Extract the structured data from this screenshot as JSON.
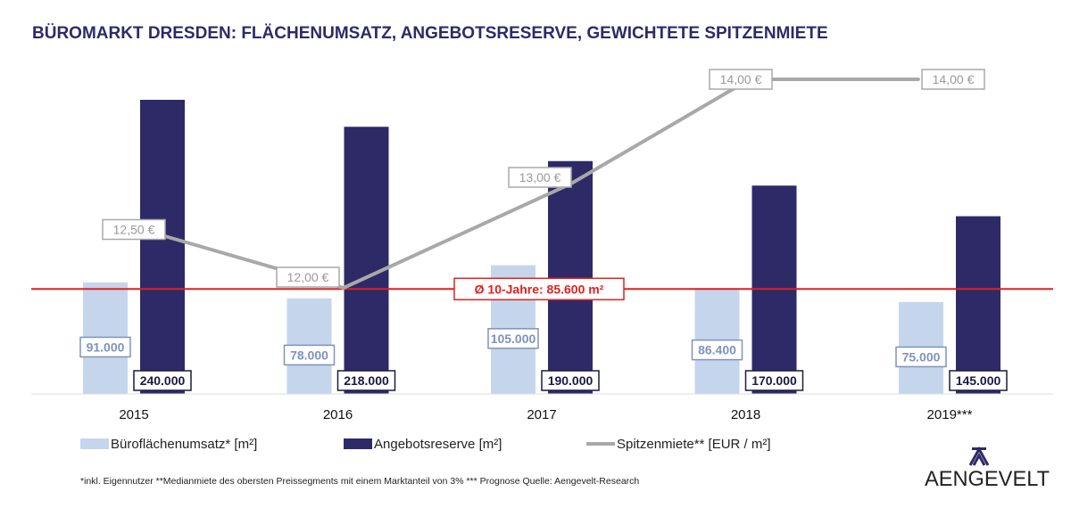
{
  "chart_data": {
    "type": "bar",
    "title": "BÜROMARKT DRESDEN: FLÄCHENUMSATZ, ANGEBOTSRESERVE, GEWICHTETE SPITZENMIETE",
    "categories": [
      "2015",
      "2016",
      "2017",
      "2018",
      "2019***"
    ],
    "series": [
      {
        "name": "Büroflächenumsatz* [m²]",
        "type": "bar",
        "color": "#c5d5ec",
        "values": [
          91000,
          78000,
          105000,
          86400,
          75000
        ],
        "labels": [
          "91.000",
          "78.000",
          "105.000",
          "86.400",
          "75.000"
        ]
      },
      {
        "name": "Angebotsreserve [m²]",
        "type": "bar",
        "color": "#2e2a68",
        "values": [
          240000,
          218000,
          190000,
          170000,
          145000
        ],
        "labels": [
          "240.000",
          "218.000",
          "190.000",
          "170.000",
          "145.000"
        ]
      },
      {
        "name": "Spitzenmiete** [EUR / m²]",
        "type": "line",
        "color": "#a8a8a8",
        "values": [
          12.5,
          12.0,
          13.0,
          14.0,
          14.0
        ],
        "labels": [
          "12,50 €",
          "12,00 €",
          "13,00 €",
          "14,00 €",
          "14,00 €"
        ]
      }
    ],
    "reference_line": {
      "value": 85600,
      "label": "Ø 10-Jahre: 85.600 m²",
      "color": "#e02020"
    },
    "legend_placement": "bottom",
    "grid": false
  },
  "footnote": "*inkl. Eigennutzer **Medianmiete des obersten Preissegments mit einem Marktanteil von 3% *** Prognose   Quelle: Aengevelt-Research",
  "logo": {
    "text": "AENGEVELT"
  }
}
